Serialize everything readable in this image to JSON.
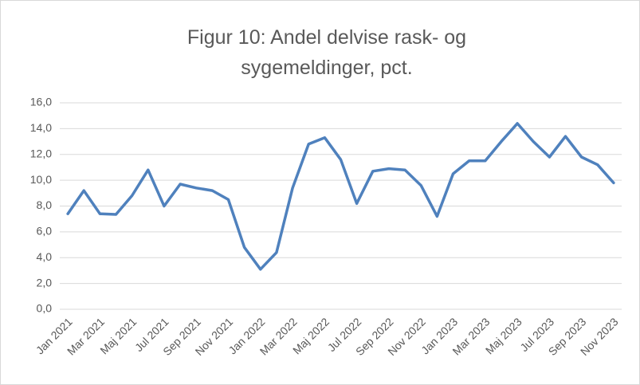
{
  "chart_data": {
    "type": "line",
    "title": "Figur 10: Andel delvise rask- og sygemeldinger, pct.",
    "categories": [
      "Jan 2021",
      null,
      "Mar 2021",
      null,
      "Maj 2021",
      null,
      "Jul 2021",
      null,
      "Sep 2021",
      null,
      "Nov 2021",
      null,
      "Jan 2022",
      null,
      "Mar 2022",
      null,
      "Maj 2022",
      null,
      "Jul 2022",
      null,
      "Sep 2022",
      null,
      "Nov 2022",
      null,
      "Jan 2023",
      null,
      "Mar 2023",
      null,
      "Maj 2023",
      null,
      "Jul 2023",
      null,
      "Sep 2023",
      null,
      "Nov 2023"
    ],
    "series": [
      {
        "name": "Andel",
        "color": "#4f81bd",
        "values": [
          7.4,
          9.2,
          7.4,
          7.35,
          8.8,
          10.8,
          8.0,
          9.7,
          9.4,
          9.2,
          8.5,
          4.8,
          3.1,
          4.4,
          9.4,
          12.8,
          13.3,
          11.6,
          8.2,
          10.7,
          10.9,
          10.8,
          9.6,
          7.2,
          10.5,
          11.5,
          11.5,
          13.0,
          14.4,
          13.0,
          11.8,
          13.4,
          11.8,
          11.2,
          9.8
        ]
      }
    ],
    "ylim": [
      0,
      16
    ],
    "yticks": [
      {
        "value": 0,
        "label": "0,0"
      },
      {
        "value": 2,
        "label": "2,0"
      },
      {
        "value": 4,
        "label": "4,0"
      },
      {
        "value": 6,
        "label": "6,0"
      },
      {
        "value": 8,
        "label": "8,0"
      },
      {
        "value": 10,
        "label": "10,0"
      },
      {
        "value": 12,
        "label": "12,0"
      },
      {
        "value": 14,
        "label": "14,0"
      },
      {
        "value": 16,
        "label": "16,0"
      }
    ],
    "grid": true
  }
}
